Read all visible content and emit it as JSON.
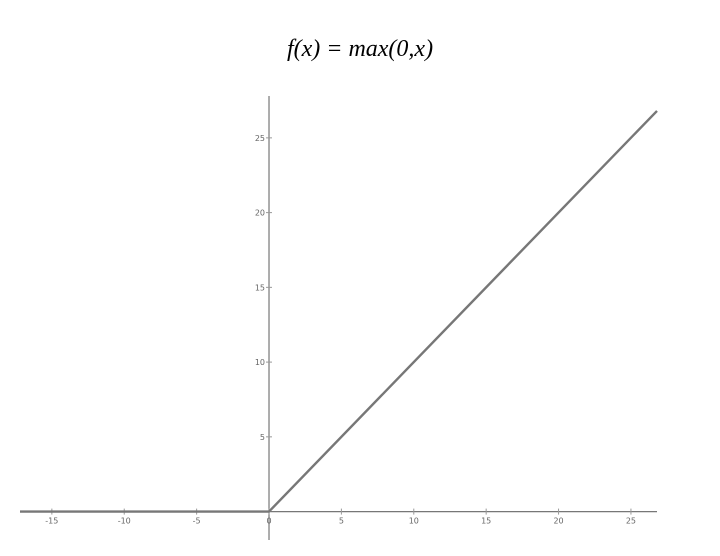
{
  "chart_data": {
    "type": "line",
    "title": "f(x) = max(0,x)",
    "xlabel": "",
    "ylabel": "",
    "xlim": [
      -17.2,
      26.8
    ],
    "ylim": [
      -1.9,
      27.8
    ],
    "x_ticks": [
      -15,
      -10,
      -5,
      0,
      5,
      10,
      15,
      20,
      25
    ],
    "y_ticks": [
      5,
      10,
      15,
      20,
      25
    ],
    "grid": false,
    "series": [
      {
        "x": [
          -17.2,
          0,
          26.8
        ],
        "y": [
          0,
          0,
          26.8
        ],
        "color": "#777777"
      }
    ]
  }
}
